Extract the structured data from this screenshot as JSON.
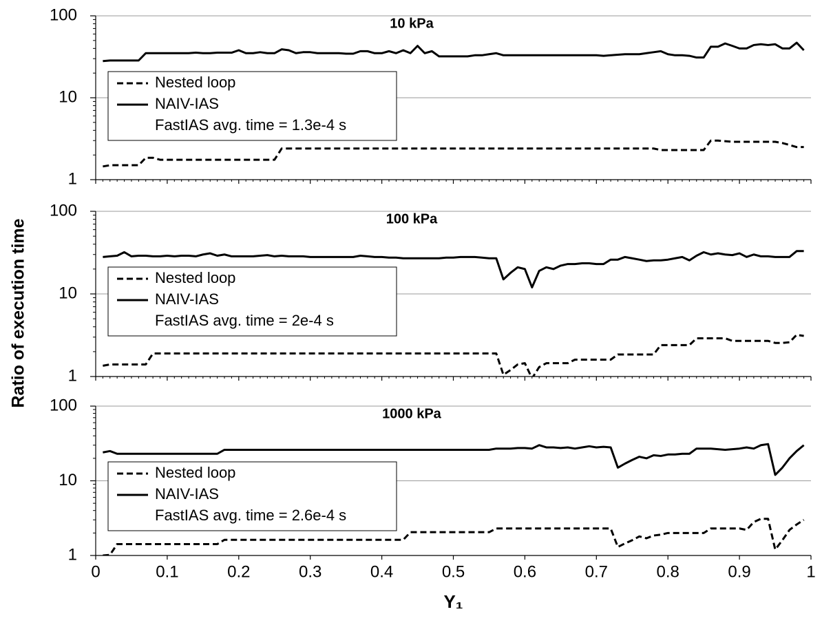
{
  "chart_data": [
    {
      "type": "line",
      "title": "10 kPa",
      "yscale": "log",
      "ylim": [
        1,
        100
      ],
      "yticks": [
        1,
        10,
        100
      ],
      "xlim": [
        0,
        1
      ],
      "xticks": [
        0,
        0.1,
        0.2,
        0.3,
        0.4,
        0.5,
        0.6,
        0.7,
        0.8,
        0.9,
        1
      ],
      "grid": true,
      "annotation": "FastIAS avg. time = 1.3e-4 s",
      "x": [
        0.01,
        0.02,
        0.03,
        0.04,
        0.05,
        0.06,
        0.07,
        0.08,
        0.09,
        0.1,
        0.11,
        0.12,
        0.13,
        0.14,
        0.15,
        0.16,
        0.17,
        0.18,
        0.19,
        0.2,
        0.21,
        0.22,
        0.23,
        0.24,
        0.25,
        0.26,
        0.27,
        0.28,
        0.29,
        0.3,
        0.31,
        0.32,
        0.33,
        0.34,
        0.35,
        0.36,
        0.37,
        0.38,
        0.39,
        0.4,
        0.41,
        0.42,
        0.43,
        0.44,
        0.45,
        0.46,
        0.47,
        0.48,
        0.49,
        0.5,
        0.51,
        0.52,
        0.53,
        0.54,
        0.55,
        0.56,
        0.57,
        0.58,
        0.59,
        0.6,
        0.61,
        0.62,
        0.63,
        0.64,
        0.65,
        0.66,
        0.67,
        0.68,
        0.69,
        0.7,
        0.71,
        0.72,
        0.73,
        0.74,
        0.75,
        0.76,
        0.77,
        0.78,
        0.79,
        0.8,
        0.81,
        0.82,
        0.83,
        0.84,
        0.85,
        0.86,
        0.87,
        0.88,
        0.89,
        0.9,
        0.91,
        0.92,
        0.93,
        0.94,
        0.95,
        0.96,
        0.97,
        0.98,
        0.99
      ],
      "series": [
        {
          "name": "Nested loop",
          "color": "#000000",
          "linestyle": "dashed",
          "values": [
            1.45,
            1.5,
            1.5,
            1.5,
            1.5,
            1.5,
            1.85,
            1.85,
            1.75,
            1.75,
            1.75,
            1.75,
            1.75,
            1.75,
            1.75,
            1.75,
            1.75,
            1.75,
            1.75,
            1.75,
            1.75,
            1.75,
            1.75,
            1.75,
            1.75,
            2.4,
            2.4,
            2.4,
            2.4,
            2.4,
            2.4,
            2.4,
            2.4,
            2.4,
            2.4,
            2.4,
            2.4,
            2.4,
            2.4,
            2.4,
            2.4,
            2.4,
            2.4,
            2.4,
            2.4,
            2.4,
            2.4,
            2.4,
            2.4,
            2.4,
            2.4,
            2.4,
            2.4,
            2.4,
            2.4,
            2.4,
            2.4,
            2.4,
            2.4,
            2.4,
            2.4,
            2.4,
            2.4,
            2.4,
            2.4,
            2.4,
            2.4,
            2.4,
            2.4,
            2.4,
            2.4,
            2.4,
            2.4,
            2.4,
            2.4,
            2.4,
            2.4,
            2.4,
            2.3,
            2.3,
            2.3,
            2.3,
            2.3,
            2.3,
            2.3,
            3.0,
            3.0,
            2.95,
            2.9,
            2.9,
            2.9,
            2.9,
            2.9,
            2.9,
            2.9,
            2.8,
            2.65,
            2.5,
            2.5
          ]
        },
        {
          "name": "NAIV-IAS",
          "color": "#000000",
          "linestyle": "solid",
          "values": [
            28,
            28.5,
            28.5,
            28.5,
            28.5,
            28.5,
            35,
            35,
            35,
            35,
            35,
            35,
            35,
            35.5,
            35,
            35,
            35.5,
            35.5,
            35.5,
            38,
            35,
            35,
            36,
            35,
            35,
            39,
            38,
            35,
            36,
            36,
            35,
            35,
            35,
            35,
            34.5,
            34.5,
            37,
            37,
            35,
            35,
            37,
            35,
            38,
            35,
            43,
            35,
            37,
            32,
            32,
            32,
            32,
            32,
            33,
            33,
            34,
            35,
            33,
            33,
            33,
            33,
            33,
            33,
            33,
            33,
            33,
            33,
            33,
            33,
            33,
            33,
            32.5,
            33,
            33.5,
            34,
            34,
            34,
            35,
            36,
            37,
            34,
            33,
            33,
            32.5,
            31,
            31,
            42,
            42,
            46,
            43,
            40,
            40,
            44,
            45,
            44,
            45,
            40,
            40,
            47,
            38
          ]
        }
      ]
    },
    {
      "type": "line",
      "title": "100 kPa",
      "ylabel": "Ratio of execution time",
      "yscale": "log",
      "ylim": [
        1,
        100
      ],
      "yticks": [
        1,
        10,
        100
      ],
      "xlim": [
        0,
        1
      ],
      "xticks": [
        0,
        0.1,
        0.2,
        0.3,
        0.4,
        0.5,
        0.6,
        0.7,
        0.8,
        0.9,
        1
      ],
      "grid": true,
      "annotation": "FastIAS avg. time = 2e-4 s",
      "x": [
        0.01,
        0.02,
        0.03,
        0.04,
        0.05,
        0.06,
        0.07,
        0.08,
        0.09,
        0.1,
        0.11,
        0.12,
        0.13,
        0.14,
        0.15,
        0.16,
        0.17,
        0.18,
        0.19,
        0.2,
        0.21,
        0.22,
        0.23,
        0.24,
        0.25,
        0.26,
        0.27,
        0.28,
        0.29,
        0.3,
        0.31,
        0.32,
        0.33,
        0.34,
        0.35,
        0.36,
        0.37,
        0.38,
        0.39,
        0.4,
        0.41,
        0.42,
        0.43,
        0.44,
        0.45,
        0.46,
        0.47,
        0.48,
        0.49,
        0.5,
        0.51,
        0.52,
        0.53,
        0.54,
        0.55,
        0.56,
        0.57,
        0.58,
        0.59,
        0.6,
        0.61,
        0.62,
        0.63,
        0.64,
        0.65,
        0.66,
        0.67,
        0.68,
        0.69,
        0.7,
        0.71,
        0.72,
        0.73,
        0.74,
        0.75,
        0.76,
        0.77,
        0.78,
        0.79,
        0.8,
        0.81,
        0.82,
        0.83,
        0.84,
        0.85,
        0.86,
        0.87,
        0.88,
        0.89,
        0.9,
        0.91,
        0.92,
        0.93,
        0.94,
        0.95,
        0.96,
        0.97,
        0.98,
        0.99
      ],
      "series": [
        {
          "name": "Nested loop",
          "color": "#000000",
          "linestyle": "dashed",
          "values": [
            1.35,
            1.4,
            1.4,
            1.4,
            1.4,
            1.4,
            1.4,
            1.9,
            1.9,
            1.9,
            1.9,
            1.9,
            1.9,
            1.9,
            1.9,
            1.9,
            1.9,
            1.9,
            1.9,
            1.9,
            1.9,
            1.9,
            1.9,
            1.9,
            1.9,
            1.9,
            1.9,
            1.9,
            1.9,
            1.9,
            1.9,
            1.9,
            1.9,
            1.9,
            1.9,
            1.9,
            1.9,
            1.9,
            1.9,
            1.9,
            1.9,
            1.9,
            1.9,
            1.9,
            1.9,
            1.9,
            1.9,
            1.9,
            1.9,
            1.9,
            1.9,
            1.9,
            1.9,
            1.9,
            1.9,
            1.9,
            1.05,
            1.2,
            1.4,
            1.45,
            0.95,
            1.3,
            1.45,
            1.45,
            1.45,
            1.45,
            1.6,
            1.6,
            1.6,
            1.6,
            1.6,
            1.6,
            1.85,
            1.85,
            1.85,
            1.85,
            1.85,
            1.85,
            2.4,
            2.4,
            2.4,
            2.4,
            2.4,
            2.9,
            2.9,
            2.9,
            2.9,
            2.9,
            2.7,
            2.7,
            2.7,
            2.7,
            2.7,
            2.7,
            2.55,
            2.55,
            2.6,
            3.2,
            3.1
          ]
        },
        {
          "name": "NAIV-IAS",
          "color": "#000000",
          "linestyle": "solid",
          "values": [
            28,
            28.5,
            29,
            32,
            28.5,
            29,
            29,
            28.5,
            28.5,
            29,
            28.5,
            29,
            29,
            28.5,
            30,
            31,
            29,
            30,
            28.5,
            28.5,
            28.5,
            28.5,
            29,
            29.5,
            28.5,
            29,
            28.5,
            28.5,
            28.5,
            28,
            28,
            28,
            28,
            28,
            28,
            28,
            29,
            28.5,
            28,
            28,
            27.5,
            27.5,
            27,
            27,
            27,
            27,
            27,
            27,
            27.5,
            27.5,
            28,
            28,
            28,
            27.5,
            27,
            27,
            15,
            18,
            21,
            20,
            12,
            19,
            21,
            20,
            22,
            23,
            23,
            23.5,
            23.5,
            23,
            23,
            26,
            26,
            28,
            27,
            26,
            25,
            25.5,
            25.5,
            26,
            27,
            28,
            25.5,
            29,
            32,
            30,
            31,
            30,
            29.5,
            31,
            28,
            30,
            28.5,
            28.5,
            28,
            28,
            28,
            33,
            33
          ]
        }
      ]
    },
    {
      "type": "line",
      "title": "1000 kPa",
      "xlabel": "Y₁",
      "yscale": "log",
      "ylim": [
        1,
        100
      ],
      "yticks": [
        1,
        10,
        100
      ],
      "xlim": [
        0,
        1
      ],
      "xticks": [
        0,
        0.1,
        0.2,
        0.3,
        0.4,
        0.5,
        0.6,
        0.7,
        0.8,
        0.9,
        1
      ],
      "grid": true,
      "annotation": "FastIAS avg. time = 2.6e-4 s",
      "x": [
        0.01,
        0.02,
        0.03,
        0.04,
        0.05,
        0.06,
        0.07,
        0.08,
        0.09,
        0.1,
        0.11,
        0.12,
        0.13,
        0.14,
        0.15,
        0.16,
        0.17,
        0.18,
        0.19,
        0.2,
        0.21,
        0.22,
        0.23,
        0.24,
        0.25,
        0.26,
        0.27,
        0.28,
        0.29,
        0.3,
        0.31,
        0.32,
        0.33,
        0.34,
        0.35,
        0.36,
        0.37,
        0.38,
        0.39,
        0.4,
        0.41,
        0.42,
        0.43,
        0.44,
        0.45,
        0.46,
        0.47,
        0.48,
        0.49,
        0.5,
        0.51,
        0.52,
        0.53,
        0.54,
        0.55,
        0.56,
        0.57,
        0.58,
        0.59,
        0.6,
        0.61,
        0.62,
        0.63,
        0.64,
        0.65,
        0.66,
        0.67,
        0.68,
        0.69,
        0.7,
        0.71,
        0.72,
        0.73,
        0.74,
        0.75,
        0.76,
        0.77,
        0.78,
        0.79,
        0.8,
        0.81,
        0.82,
        0.83,
        0.84,
        0.85,
        0.86,
        0.87,
        0.88,
        0.89,
        0.9,
        0.91,
        0.92,
        0.93,
        0.94,
        0.95,
        0.96,
        0.97,
        0.98,
        0.99
      ],
      "series": [
        {
          "name": "Nested loop",
          "color": "#000000",
          "linestyle": "dashed",
          "values": [
            1.0,
            1.02,
            1.42,
            1.42,
            1.42,
            1.42,
            1.42,
            1.42,
            1.42,
            1.42,
            1.42,
            1.42,
            1.42,
            1.42,
            1.42,
            1.42,
            1.42,
            1.62,
            1.62,
            1.62,
            1.62,
            1.62,
            1.62,
            1.62,
            1.62,
            1.62,
            1.62,
            1.62,
            1.62,
            1.62,
            1.62,
            1.62,
            1.62,
            1.62,
            1.62,
            1.62,
            1.62,
            1.62,
            1.62,
            1.62,
            1.62,
            1.62,
            1.62,
            2.05,
            2.05,
            2.05,
            2.05,
            2.05,
            2.05,
            2.05,
            2.05,
            2.05,
            2.05,
            2.05,
            2.05,
            2.3,
            2.3,
            2.3,
            2.3,
            2.3,
            2.3,
            2.3,
            2.3,
            2.3,
            2.3,
            2.3,
            2.3,
            2.3,
            2.3,
            2.3,
            2.3,
            2.3,
            1.3,
            1.45,
            1.6,
            1.8,
            1.7,
            1.85,
            1.9,
            2.0,
            2.0,
            2.0,
            2.0,
            2.0,
            2.0,
            2.3,
            2.3,
            2.3,
            2.3,
            2.3,
            2.2,
            2.8,
            3.1,
            3.1,
            1.2,
            1.6,
            2.2,
            2.6,
            3.0
          ]
        },
        {
          "name": "NAIV-IAS",
          "color": "#000000",
          "linestyle": "solid",
          "values": [
            24,
            25,
            23,
            23,
            23,
            23,
            23,
            23,
            23,
            23,
            23,
            23,
            23,
            23,
            23,
            23,
            23,
            26,
            26,
            26,
            26,
            26,
            26,
            26,
            26,
            26,
            26,
            26,
            26,
            26,
            26,
            26,
            26,
            26,
            26,
            26,
            26,
            26,
            26,
            26,
            26,
            26,
            26,
            26,
            26,
            26,
            26,
            26,
            26,
            26,
            26,
            26,
            26,
            26,
            26,
            27,
            27,
            27,
            27.5,
            27.5,
            27,
            30,
            28,
            28,
            27.5,
            28,
            27,
            28,
            29,
            28,
            28.5,
            28,
            15,
            17,
            19,
            21,
            20,
            22,
            21.5,
            22.5,
            22.5,
            23,
            23,
            27,
            27,
            27,
            26.5,
            26,
            26.5,
            27,
            28,
            27,
            30,
            31,
            12,
            15,
            20,
            25,
            30
          ]
        }
      ]
    }
  ]
}
